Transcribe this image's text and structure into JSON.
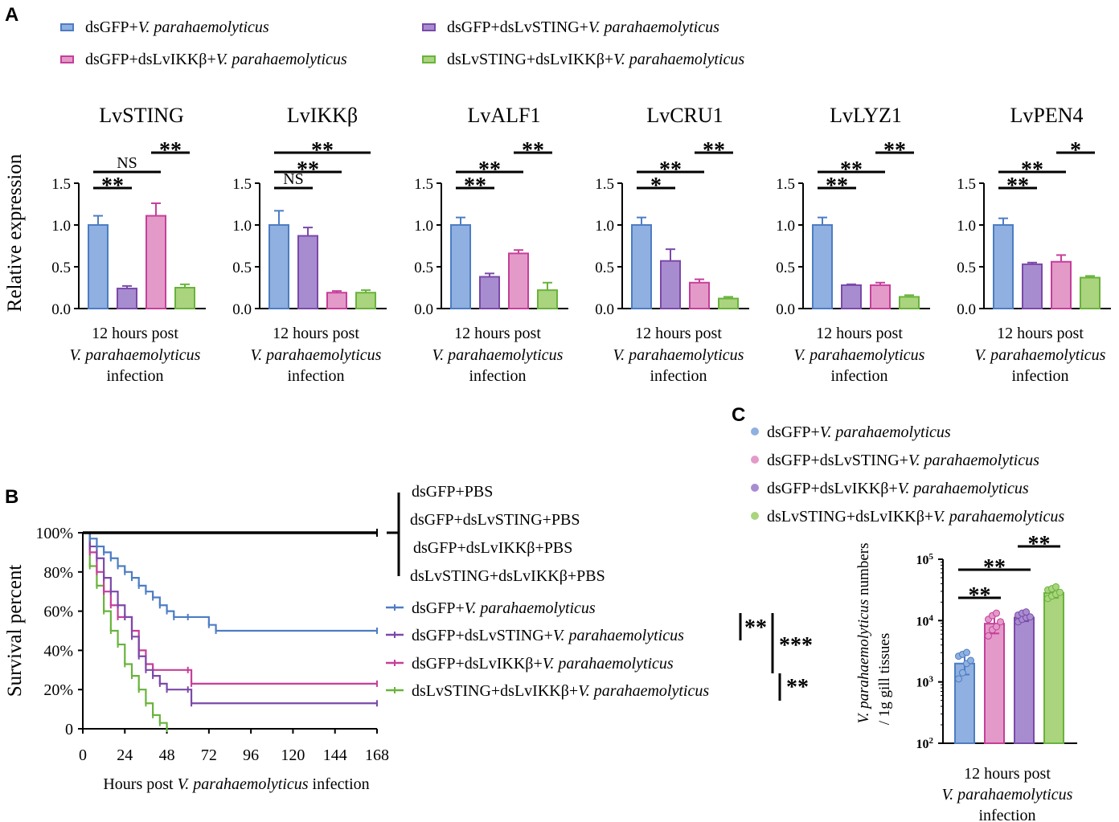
{
  "colors": {
    "blue": "#4d7dc3",
    "blue_fill": "#8fb0e0",
    "purple": "#7b49a8",
    "purple_fill": "#a78dd0",
    "pink": "#c63f9a",
    "pink_fill": "#e39ac9",
    "green": "#69b33c",
    "green_fill": "#abd47f",
    "black": "#000000"
  },
  "panels": {
    "a": "A",
    "b": "B",
    "c": "C"
  },
  "legend_a": [
    {
      "plain": "dsGFP+",
      "italic": "V. parahaemolyticus",
      "color": "blue"
    },
    {
      "plain": "dsGFP+dsLvSTING+",
      "italic": "V. parahaemolyticus",
      "color": "purple"
    },
    {
      "plain": "dsGFP+dsLvIKKβ+",
      "italic": "V. parahaemolyticus",
      "color": "pink"
    },
    {
      "plain": "dsLvSTING+dsLvIKKβ+",
      "italic": "V. parahaemolyticus",
      "color": "green"
    }
  ],
  "legend_b_pbs": [
    "dsGFP+PBS",
    "dsGFP+dsLvSTING+PBS",
    "dsGFP+dsLvIKKβ+PBS",
    "dsLvSTING+dsLvIKKβ+PBS"
  ],
  "legend_b_vp": [
    {
      "plain": "dsGFP+",
      "italic": "V. parahaemolyticus"
    },
    {
      "plain": "dsGFP+dsLvSTING+",
      "italic": "V. parahaemolyticus"
    },
    {
      "plain": "dsGFP+dsLvIKKβ+",
      "italic": "V. parahaemolyticus"
    },
    {
      "plain": "dsLvSTING+dsLvIKKβ+",
      "italic": "V. parahaemolyticus"
    }
  ],
  "legend_c": [
    {
      "plain": "dsGFP+",
      "italic": "V. parahaemolyticus"
    },
    {
      "plain": "dsGFP+dsLvSTING+",
      "italic": "V. parahaemolyticus"
    },
    {
      "plain": "dsGFP+dsLvIKKβ+",
      "italic": "V. parahaemolyticus"
    },
    {
      "plain": "dsLvSTING+dsLvIKKβ+",
      "italic": "V. parahaemolyticus"
    }
  ],
  "chart_data": [
    {
      "id": "A",
      "type": "bar",
      "ylabel": "Relative expression",
      "ylim": [
        0,
        1.5
      ],
      "yticks": [
        "0.0",
        "0.5",
        "1.0",
        "1.5"
      ],
      "xlabel_lines": [
        "12 hours post",
        "V. parahaemolyticus",
        "infection"
      ],
      "series_order": [
        "blue",
        "purple",
        "pink",
        "green"
      ],
      "subplots": [
        {
          "title": "LvSTING",
          "values": [
            1.0,
            0.24,
            1.11,
            0.25
          ],
          "errors": [
            0.11,
            0.03,
            0.15,
            0.04
          ],
          "sig": [
            {
              "a": 0,
              "b": 1,
              "label": "**",
              "level": 0
            },
            {
              "a": 0,
              "b": 2,
              "label": "NS",
              "level": 1
            },
            {
              "a": 2,
              "b": 3,
              "label": "**",
              "level": 2
            }
          ]
        },
        {
          "title": "LvIKKβ",
          "values": [
            1.0,
            0.87,
            0.19,
            0.19
          ],
          "errors": [
            0.17,
            0.1,
            0.02,
            0.03
          ],
          "sig": [
            {
              "a": 0,
              "b": 1,
              "label": "NS",
              "level": 0
            },
            {
              "a": 0,
              "b": 2,
              "label": "**",
              "level": 1
            },
            {
              "a": 0,
              "b": 3,
              "label": "**",
              "level": 2
            }
          ]
        },
        {
          "title": "LvALF1",
          "values": [
            1.0,
            0.38,
            0.66,
            0.22
          ],
          "errors": [
            0.09,
            0.04,
            0.04,
            0.09
          ],
          "sig": [
            {
              "a": 0,
              "b": 1,
              "label": "**",
              "level": 0
            },
            {
              "a": 0,
              "b": 2,
              "label": "**",
              "level": 1
            },
            {
              "a": 2,
              "b": 3,
              "label": "**",
              "level": 2
            }
          ]
        },
        {
          "title": "LvCRU1",
          "values": [
            1.0,
            0.57,
            0.31,
            0.12
          ],
          "errors": [
            0.09,
            0.14,
            0.04,
            0.02
          ],
          "sig": [
            {
              "a": 0,
              "b": 1,
              "label": "*",
              "level": 0
            },
            {
              "a": 0,
              "b": 2,
              "label": "**",
              "level": 1
            },
            {
              "a": 2,
              "b": 3,
              "label": "**",
              "level": 2
            }
          ]
        },
        {
          "title": "LvLYZ1",
          "values": [
            1.0,
            0.28,
            0.28,
            0.14
          ],
          "errors": [
            0.09,
            0.01,
            0.03,
            0.02
          ],
          "sig": [
            {
              "a": 0,
              "b": 1,
              "label": "**",
              "level": 0
            },
            {
              "a": 0,
              "b": 2,
              "label": "**",
              "level": 1
            },
            {
              "a": 2,
              "b": 3,
              "label": "**",
              "level": 2
            }
          ]
        },
        {
          "title": "LvPEN4",
          "values": [
            1.0,
            0.53,
            0.56,
            0.37
          ],
          "errors": [
            0.08,
            0.02,
            0.08,
            0.02
          ],
          "sig": [
            {
              "a": 0,
              "b": 1,
              "label": "**",
              "level": 0
            },
            {
              "a": 0,
              "b": 2,
              "label": "**",
              "level": 1
            },
            {
              "a": 2,
              "b": 3,
              "label": "*",
              "level": 2
            }
          ]
        }
      ]
    },
    {
      "id": "B",
      "type": "line",
      "ylabel": "Survival percent",
      "xlabel_plain": "Hours post ",
      "xlabel_italic": "V. parahaemolyticus",
      "xlabel_tail": " infection",
      "xlim": [
        0,
        168
      ],
      "ylim": [
        0,
        100
      ],
      "xticks": [
        0,
        24,
        48,
        72,
        96,
        120,
        144,
        168
      ],
      "yticks": [
        "0",
        "20%",
        "40%",
        "60%",
        "80%",
        "100%"
      ],
      "series": [
        {
          "name": "PBS groups",
          "color": "black",
          "points": [
            [
              0,
              100
            ],
            [
              168,
              100
            ]
          ]
        },
        {
          "name": "dsGFP+V. parahaemolyticus",
          "color": "blue",
          "points": [
            [
              0,
              100
            ],
            [
              4,
              97
            ],
            [
              8,
              93
            ],
            [
              12,
              90
            ],
            [
              16,
              87
            ],
            [
              20,
              83
            ],
            [
              24,
              80
            ],
            [
              28,
              77
            ],
            [
              32,
              73
            ],
            [
              36,
              70
            ],
            [
              40,
              67
            ],
            [
              44,
              63
            ],
            [
              48,
              60
            ],
            [
              52,
              57
            ],
            [
              60,
              57
            ],
            [
              72,
              53
            ],
            [
              76,
              50
            ],
            [
              168,
              50
            ]
          ]
        },
        {
          "name": "dsGFP+dsLvSTING+V. parahaemolyticus",
          "color": "purple",
          "points": [
            [
              0,
              100
            ],
            [
              4,
              93
            ],
            [
              8,
              87
            ],
            [
              12,
              77
            ],
            [
              16,
              70
            ],
            [
              20,
              63
            ],
            [
              24,
              57
            ],
            [
              28,
              47
            ],
            [
              32,
              37
            ],
            [
              36,
              30
            ],
            [
              40,
              27
            ],
            [
              44,
              23
            ],
            [
              48,
              20
            ],
            [
              60,
              20
            ],
            [
              62,
              13
            ],
            [
              168,
              13
            ]
          ]
        },
        {
          "name": "dsGFP+dsLvIKKβ+V. parahaemolyticus",
          "color": "pink",
          "points": [
            [
              0,
              100
            ],
            [
              4,
              90
            ],
            [
              8,
              80
            ],
            [
              12,
              70
            ],
            [
              16,
              63
            ],
            [
              20,
              57
            ],
            [
              24,
              57
            ],
            [
              28,
              50
            ],
            [
              32,
              40
            ],
            [
              36,
              33
            ],
            [
              40,
              30
            ],
            [
              60,
              30
            ],
            [
              62,
              23
            ],
            [
              168,
              23
            ]
          ]
        },
        {
          "name": "dsLvSTING+dsLvIKKβ+V. parahaemolyticus",
          "color": "green",
          "points": [
            [
              0,
              100
            ],
            [
              4,
              83
            ],
            [
              8,
              73
            ],
            [
              12,
              60
            ],
            [
              16,
              50
            ],
            [
              20,
              43
            ],
            [
              24,
              33
            ],
            [
              28,
              27
            ],
            [
              32,
              20
            ],
            [
              36,
              13
            ],
            [
              40,
              7
            ],
            [
              44,
              3
            ],
            [
              48,
              0
            ]
          ]
        }
      ],
      "sig": [
        {
          "label": "**",
          "pair": "blue-purple"
        },
        {
          "label": "***",
          "pair": "blue-green"
        },
        {
          "label": "**",
          "pair": "pink-green"
        }
      ]
    },
    {
      "id": "C",
      "type": "bar",
      "scale": "log",
      "ylabel_italic": "V. parahaemolyticus",
      "ylabel_tail": " numbers",
      "ylabel_line2": "/ 1g gill tissues",
      "ylim_log10": [
        2,
        5
      ],
      "yticks_exp": [
        2,
        3,
        4,
        5
      ],
      "xlabel_lines": [
        "12 hours post",
        "V. parahaemolyticus",
        "infection"
      ],
      "series_order": [
        "blue",
        "pink",
        "purple",
        "green"
      ],
      "values_log10": [
        3.3,
        3.95,
        4.05,
        4.45
      ],
      "errors_log10": [
        0.18,
        0.16,
        0.06,
        0.08
      ],
      "points_log10": [
        [
          3.05,
          3.15,
          3.3,
          3.35,
          3.42,
          3.45,
          3.48
        ],
        [
          3.75,
          3.85,
          3.9,
          3.98,
          4.02,
          4.08,
          4.12
        ],
        [
          3.98,
          4.02,
          4.05,
          4.06,
          4.09,
          4.12,
          4.14
        ],
        [
          4.36,
          4.4,
          4.43,
          4.46,
          4.5,
          4.52,
          4.55
        ]
      ],
      "sig": [
        {
          "a": 0,
          "b": 1,
          "label": "**",
          "level": 0
        },
        {
          "a": 0,
          "b": 2,
          "label": "**",
          "level": 1
        },
        {
          "a": 2,
          "b": 3,
          "label": "**",
          "level": 2
        }
      ]
    }
  ]
}
